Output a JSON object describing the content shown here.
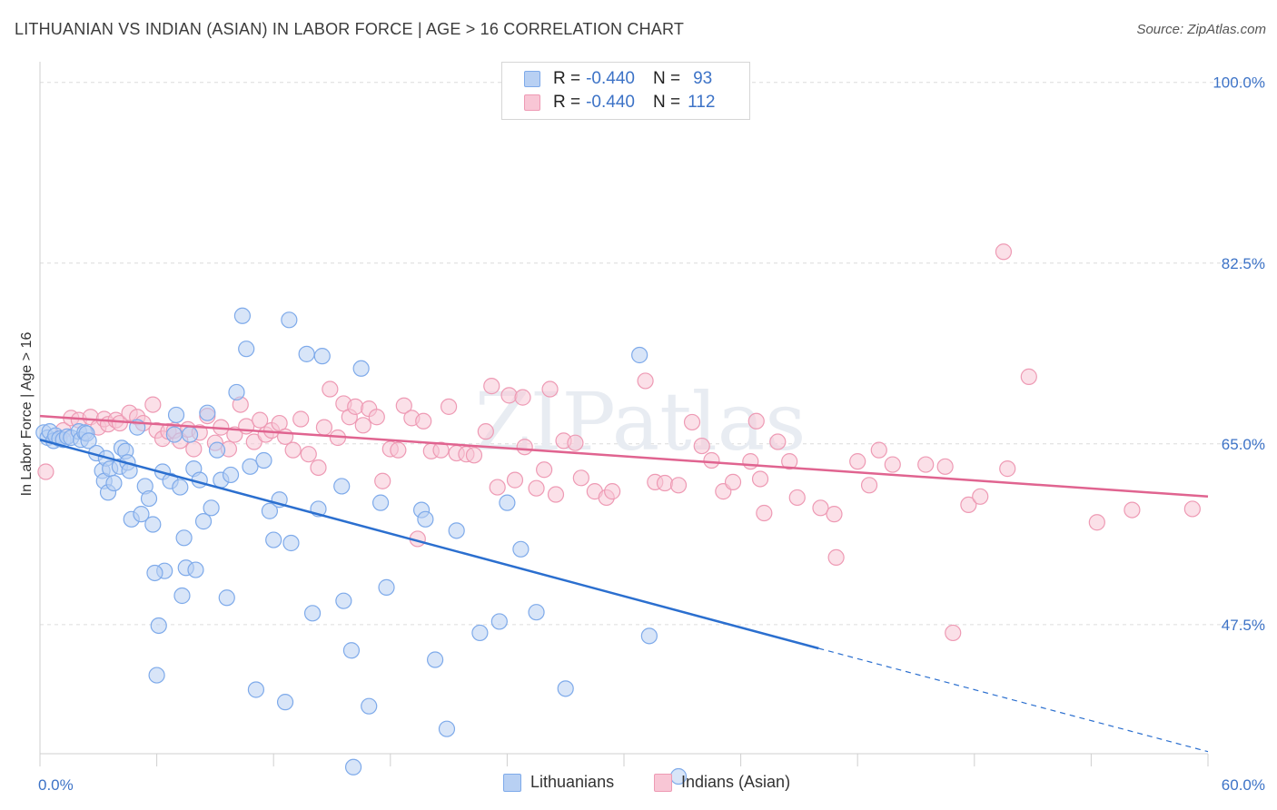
{
  "title": "LITHUANIAN VS INDIAN (ASIAN) IN LABOR FORCE | AGE > 16 CORRELATION CHART",
  "source": "Source: ZipAtlas.com",
  "watermark": "ZIPatlas",
  "legend_top": [
    {
      "r_label": "R =",
      "r_value": "-0.440",
      "n_label": "N =",
      "n_value": "93",
      "color": "#7eaaea",
      "fill": "#b8d0f3"
    },
    {
      "r_label": "R =",
      "r_value": "-0.440",
      "n_label": "N =",
      "n_value": "112",
      "color": "#ee9ab4",
      "fill": "#f8c6d5"
    }
  ],
  "chart_data": {
    "type": "scatter",
    "xlabel": "",
    "ylabel": "In Labor Force | Age > 16",
    "xlim": [
      0,
      60
    ],
    "ylim": [
      35,
      102
    ],
    "x_tick_labels": [
      {
        "value": 0,
        "label": "0.0%"
      },
      {
        "value": 60,
        "label": "60.0%"
      }
    ],
    "y_tick_labels": [
      {
        "value": 100,
        "label": "100.0%"
      },
      {
        "value": 82.5,
        "label": "82.5%"
      },
      {
        "value": 65,
        "label": "65.0%"
      },
      {
        "value": 47.5,
        "label": "47.5%"
      }
    ],
    "y_grid": [
      100,
      82.5,
      65,
      47.5
    ],
    "x_minor_ticks": [
      0,
      6,
      12,
      18,
      24,
      30,
      36,
      42,
      48,
      54,
      60
    ],
    "series": [
      {
        "name": "Lithuanians",
        "color": "#7eaaea",
        "fill": "#b8d0f3",
        "line_color": "#2b6fcf",
        "trend": {
          "x0": 0,
          "y0": 65.4,
          "x1": 40,
          "y1": 45.2,
          "dash_to_x": 60,
          "dash_to_y": 35.2
        },
        "points": [
          [
            0.2,
            66.1
          ],
          [
            0.4,
            65.6
          ],
          [
            0.5,
            66.2
          ],
          [
            0.7,
            65.3
          ],
          [
            0.8,
            65.8
          ],
          [
            1.0,
            65.5
          ],
          [
            1.2,
            65.4
          ],
          [
            1.4,
            65.7
          ],
          [
            1.6,
            65.6
          ],
          [
            2.0,
            66.2
          ],
          [
            2.1,
            65.4
          ],
          [
            2.3,
            66.1
          ],
          [
            2.4,
            66.0
          ],
          [
            2.5,
            65.3
          ],
          [
            2.9,
            64.1
          ],
          [
            3.2,
            62.4
          ],
          [
            3.3,
            61.4
          ],
          [
            3.4,
            63.6
          ],
          [
            3.5,
            60.3
          ],
          [
            3.6,
            62.6
          ],
          [
            3.8,
            61.2
          ],
          [
            4.1,
            62.8
          ],
          [
            4.2,
            64.6
          ],
          [
            4.4,
            64.3
          ],
          [
            4.5,
            63.2
          ],
          [
            4.6,
            62.4
          ],
          [
            4.7,
            57.7
          ],
          [
            5.0,
            66.6
          ],
          [
            5.2,
            58.2
          ],
          [
            5.4,
            60.9
          ],
          [
            5.6,
            59.7
          ],
          [
            5.8,
            57.2
          ],
          [
            6.1,
            47.4
          ],
          [
            6.0,
            42.6
          ],
          [
            6.3,
            62.3
          ],
          [
            6.4,
            52.7
          ],
          [
            6.7,
            61.4
          ],
          [
            6.9,
            65.9
          ],
          [
            7.0,
            67.8
          ],
          [
            7.2,
            60.8
          ],
          [
            7.4,
            55.9
          ],
          [
            7.5,
            53.0
          ],
          [
            7.7,
            65.9
          ],
          [
            7.9,
            62.6
          ],
          [
            8.0,
            52.8
          ],
          [
            8.2,
            61.5
          ],
          [
            8.4,
            57.5
          ],
          [
            8.6,
            68.0
          ],
          [
            8.8,
            58.8
          ],
          [
            9.1,
            64.4
          ],
          [
            9.3,
            61.5
          ],
          [
            9.6,
            50.1
          ],
          [
            9.8,
            62.0
          ],
          [
            10.1,
            70.0
          ],
          [
            10.4,
            77.4
          ],
          [
            10.6,
            74.2
          ],
          [
            10.8,
            62.8
          ],
          [
            11.1,
            41.2
          ],
          [
            11.5,
            63.4
          ],
          [
            11.8,
            58.5
          ],
          [
            12.0,
            55.7
          ],
          [
            12.3,
            59.6
          ],
          [
            12.6,
            40.0
          ],
          [
            12.8,
            77.0
          ],
          [
            12.9,
            55.4
          ],
          [
            13.7,
            73.7
          ],
          [
            14.0,
            48.6
          ],
          [
            14.3,
            58.7
          ],
          [
            14.5,
            73.5
          ],
          [
            15.5,
            60.9
          ],
          [
            15.6,
            49.8
          ],
          [
            16.0,
            45.0
          ],
          [
            16.1,
            33.7
          ],
          [
            16.5,
            72.3
          ],
          [
            16.9,
            39.6
          ],
          [
            17.5,
            59.3
          ],
          [
            17.8,
            51.1
          ],
          [
            19.6,
            58.6
          ],
          [
            19.8,
            57.7
          ],
          [
            20.3,
            44.1
          ],
          [
            20.9,
            37.4
          ],
          [
            21.4,
            56.6
          ],
          [
            22.6,
            46.7
          ],
          [
            23.6,
            47.8
          ],
          [
            24.0,
            59.3
          ],
          [
            24.7,
            54.8
          ],
          [
            25.5,
            48.7
          ],
          [
            27.0,
            41.3
          ],
          [
            30.8,
            73.6
          ],
          [
            31.3,
            46.4
          ],
          [
            32.8,
            32.8
          ],
          [
            7.3,
            50.3
          ],
          [
            5.9,
            52.5
          ]
        ]
      },
      {
        "name": "Indians (Asian)",
        "color": "#ee9ab4",
        "fill": "#f8c6d5",
        "line_color": "#e06490",
        "trend": {
          "x0": 0,
          "y0": 67.7,
          "x1": 60,
          "y1": 59.9
        },
        "points": [
          [
            0.3,
            62.3
          ],
          [
            1.2,
            66.3
          ],
          [
            1.6,
            67.5
          ],
          [
            2.0,
            67.3
          ],
          [
            2.6,
            67.6
          ],
          [
            3.0,
            66.6
          ],
          [
            3.3,
            67.4
          ],
          [
            3.5,
            66.9
          ],
          [
            3.9,
            67.3
          ],
          [
            4.1,
            67.0
          ],
          [
            4.6,
            68.0
          ],
          [
            5.0,
            67.6
          ],
          [
            5.3,
            67.0
          ],
          [
            5.8,
            68.8
          ],
          [
            6.0,
            66.3
          ],
          [
            6.3,
            65.5
          ],
          [
            6.6,
            66.2
          ],
          [
            6.9,
            66.3
          ],
          [
            7.2,
            65.3
          ],
          [
            7.6,
            66.4
          ],
          [
            7.9,
            64.5
          ],
          [
            8.2,
            66.1
          ],
          [
            8.6,
            67.7
          ],
          [
            9.0,
            65.1
          ],
          [
            9.3,
            66.6
          ],
          [
            9.7,
            64.5
          ],
          [
            10.0,
            65.9
          ],
          [
            10.3,
            68.8
          ],
          [
            10.6,
            66.7
          ],
          [
            11.0,
            65.2
          ],
          [
            11.3,
            67.3
          ],
          [
            11.6,
            65.9
          ],
          [
            11.9,
            66.3
          ],
          [
            12.3,
            67.0
          ],
          [
            12.6,
            65.7
          ],
          [
            13.0,
            64.4
          ],
          [
            13.4,
            67.4
          ],
          [
            13.8,
            64.0
          ],
          [
            14.3,
            62.7
          ],
          [
            14.6,
            66.6
          ],
          [
            14.9,
            70.3
          ],
          [
            15.3,
            65.6
          ],
          [
            15.6,
            68.9
          ],
          [
            15.9,
            67.6
          ],
          [
            16.2,
            68.6
          ],
          [
            16.6,
            66.8
          ],
          [
            16.9,
            68.4
          ],
          [
            17.3,
            67.6
          ],
          [
            17.6,
            61.4
          ],
          [
            18.0,
            64.5
          ],
          [
            18.4,
            64.4
          ],
          [
            18.7,
            68.7
          ],
          [
            19.1,
            67.5
          ],
          [
            19.4,
            55.8
          ],
          [
            19.7,
            67.2
          ],
          [
            20.1,
            64.3
          ],
          [
            20.6,
            64.4
          ],
          [
            21.0,
            68.6
          ],
          [
            21.4,
            64.1
          ],
          [
            21.9,
            64.0
          ],
          [
            22.3,
            63.9
          ],
          [
            22.9,
            66.2
          ],
          [
            23.2,
            70.6
          ],
          [
            23.5,
            60.8
          ],
          [
            24.1,
            69.7
          ],
          [
            24.4,
            61.5
          ],
          [
            24.9,
            64.7
          ],
          [
            25.5,
            60.7
          ],
          [
            25.9,
            62.5
          ],
          [
            26.2,
            70.3
          ],
          [
            26.5,
            60.1
          ],
          [
            26.9,
            65.3
          ],
          [
            27.5,
            65.1
          ],
          [
            27.8,
            61.7
          ],
          [
            28.5,
            60.4
          ],
          [
            29.1,
            59.8
          ],
          [
            29.4,
            60.4
          ],
          [
            31.1,
            71.1
          ],
          [
            31.6,
            61.3
          ],
          [
            32.1,
            61.2
          ],
          [
            32.8,
            61.0
          ],
          [
            33.5,
            67.1
          ],
          [
            34.0,
            64.8
          ],
          [
            34.5,
            63.4
          ],
          [
            35.1,
            60.4
          ],
          [
            35.6,
            61.3
          ],
          [
            36.5,
            63.3
          ],
          [
            37.0,
            61.6
          ],
          [
            37.2,
            58.3
          ],
          [
            38.5,
            63.3
          ],
          [
            38.9,
            59.8
          ],
          [
            40.1,
            58.8
          ],
          [
            40.8,
            58.2
          ],
          [
            42.0,
            63.3
          ],
          [
            42.6,
            61.0
          ],
          [
            43.1,
            64.4
          ],
          [
            43.8,
            63.0
          ],
          [
            45.5,
            63.0
          ],
          [
            46.5,
            62.8
          ],
          [
            46.9,
            46.7
          ],
          [
            47.7,
            59.1
          ],
          [
            48.3,
            59.9
          ],
          [
            49.7,
            62.6
          ],
          [
            49.5,
            83.6
          ],
          [
            50.8,
            71.5
          ],
          [
            54.3,
            57.4
          ],
          [
            56.1,
            58.6
          ],
          [
            59.2,
            58.7
          ],
          [
            40.9,
            54.0
          ],
          [
            36.8,
            67.2
          ],
          [
            24.8,
            69.5
          ],
          [
            37.9,
            65.2
          ]
        ]
      }
    ]
  }
}
